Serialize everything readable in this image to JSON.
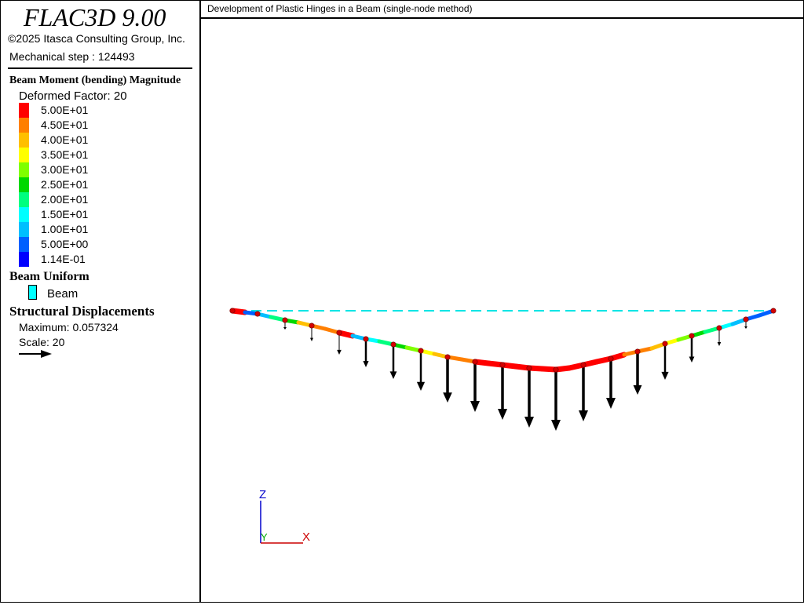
{
  "app": {
    "title": "FLAC3D 9.00",
    "copyright": "©2025 Itasca Consulting Group, Inc.",
    "step_text": "Mechanical step : 124493"
  },
  "plot": {
    "title": "Development of Plastic Hinges in a Beam (single-node method)"
  },
  "legend": {
    "moment": {
      "title": "Beam Moment (bending) Magnitude",
      "factor_text": "Deformed Factor: 20",
      "items": [
        {
          "label": "5.00E+01",
          "color": "#ff0000"
        },
        {
          "label": "4.50E+01",
          "color": "#ff7f00"
        },
        {
          "label": "4.00E+01",
          "color": "#ffbf00"
        },
        {
          "label": "3.50E+01",
          "color": "#ffff00"
        },
        {
          "label": "3.00E+01",
          "color": "#7fff00"
        },
        {
          "label": "2.50E+01",
          "color": "#00d800"
        },
        {
          "label": "2.00E+01",
          "color": "#00ff7f"
        },
        {
          "label": "1.50E+01",
          "color": "#00ffff"
        },
        {
          "label": "1.00E+01",
          "color": "#00bfff"
        },
        {
          "label": "5.00E+00",
          "color": "#0060ff"
        },
        {
          "label": "1.14E-01",
          "color": "#0000ff"
        }
      ]
    },
    "uniform": {
      "title": "Beam Uniform",
      "item_label": "Beam",
      "item_color": "#00ffff"
    },
    "displacements": {
      "title": "Structural Displacements",
      "maximum_text": "Maximum: 0.057324",
      "scale_text": "Scale: 20"
    }
  },
  "axes": {
    "z": "Z",
    "y": "Y",
    "x": "X"
  }
}
